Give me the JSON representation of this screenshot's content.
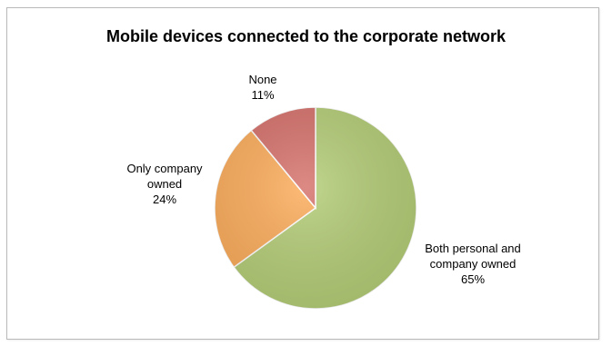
{
  "chart_data": {
    "type": "pie",
    "title": "Mobile devices connected to the corporate network",
    "slices": [
      {
        "name": "Both personal and company owned",
        "value": 65,
        "label_lines": [
          "Both personal and",
          "company owned",
          "65%"
        ],
        "color": "#b3cc75"
      },
      {
        "name": "Only company owned",
        "value": 24,
        "label_lines": [
          "Only company",
          "owned",
          "24%"
        ],
        "color": "#fbab59"
      },
      {
        "name": "None",
        "value": 11,
        "label_lines": [
          "None",
          "11%"
        ],
        "color": "#d5706a"
      }
    ],
    "start_position": "top",
    "direction": "clockwise",
    "legend": "none",
    "data_labels": "outside-end"
  }
}
